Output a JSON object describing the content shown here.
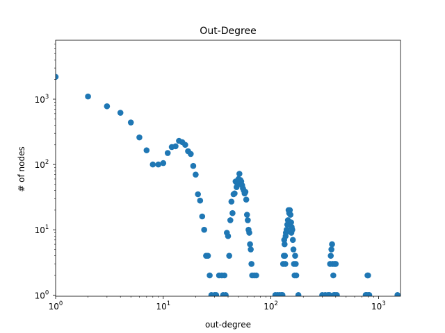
{
  "chart_data": {
    "type": "scatter",
    "title": "Out-Degree",
    "xlabel": "out-degree",
    "ylabel": "# of nodes",
    "xscale": "log",
    "yscale": "log",
    "xlim": [
      1,
      1600
    ],
    "ylim": [
      0.96,
      8000
    ],
    "x_ticks": [
      {
        "value": 1,
        "base": "10",
        "exp": "0"
      },
      {
        "value": 10,
        "base": "10",
        "exp": "1"
      },
      {
        "value": 100,
        "base": "10",
        "exp": "2"
      },
      {
        "value": 1000,
        "base": "10",
        "exp": "3"
      }
    ],
    "y_ticks": [
      {
        "value": 1,
        "base": "10",
        "exp": "0"
      },
      {
        "value": 10,
        "base": "10",
        "exp": "1"
      },
      {
        "value": 100,
        "base": "10",
        "exp": "2"
      },
      {
        "value": 1000,
        "base": "10",
        "exp": "3"
      }
    ],
    "grid": false,
    "legend": "none",
    "marker_color": "#1f77b4",
    "series": [
      {
        "points": [
          [
            1,
            2200
          ],
          [
            2,
            1100
          ],
          [
            3,
            780
          ],
          [
            4,
            620
          ],
          [
            5,
            440
          ],
          [
            6,
            260
          ],
          [
            7,
            165
          ],
          [
            8,
            100
          ],
          [
            9,
            100
          ],
          [
            10,
            105
          ],
          [
            11,
            150
          ],
          [
            12,
            185
          ],
          [
            13,
            190
          ],
          [
            14,
            230
          ],
          [
            15,
            220
          ],
          [
            16,
            200
          ],
          [
            17,
            160
          ],
          [
            18,
            145
          ],
          [
            19,
            95
          ],
          [
            20,
            70
          ],
          [
            21,
            35
          ],
          [
            22,
            28
          ],
          [
            23,
            16
          ],
          [
            24,
            10
          ],
          [
            25,
            4
          ],
          [
            26,
            4
          ],
          [
            27,
            2
          ],
          [
            28,
            1
          ],
          [
            30,
            1
          ],
          [
            31,
            1
          ],
          [
            33,
            2
          ],
          [
            35,
            2
          ],
          [
            36,
            1
          ],
          [
            37,
            2
          ],
          [
            38,
            1
          ],
          [
            39,
            9
          ],
          [
            40,
            8
          ],
          [
            41,
            4
          ],
          [
            42,
            14
          ],
          [
            43,
            27
          ],
          [
            44,
            18
          ],
          [
            45,
            35
          ],
          [
            46,
            36
          ],
          [
            47,
            55
          ],
          [
            48,
            45
          ],
          [
            49,
            50
          ],
          [
            50,
            60
          ],
          [
            51,
            72
          ],
          [
            52,
            58
          ],
          [
            53,
            55
          ],
          [
            54,
            48
          ],
          [
            55,
            43
          ],
          [
            56,
            40
          ],
          [
            57,
            36
          ],
          [
            58,
            38
          ],
          [
            59,
            29
          ],
          [
            60,
            17
          ],
          [
            61,
            14
          ],
          [
            62,
            10
          ],
          [
            63,
            9
          ],
          [
            64,
            6
          ],
          [
            65,
            5
          ],
          [
            66,
            3
          ],
          [
            67,
            2
          ],
          [
            70,
            2
          ],
          [
            73,
            2
          ],
          [
            110,
            1
          ],
          [
            115,
            1
          ],
          [
            120,
            1
          ],
          [
            125,
            1
          ],
          [
            128,
            1
          ],
          [
            130,
            3
          ],
          [
            132,
            4
          ],
          [
            133,
            7
          ],
          [
            134,
            6
          ],
          [
            135,
            4
          ],
          [
            136,
            3
          ],
          [
            137,
            8
          ],
          [
            138,
            9
          ],
          [
            140,
            10
          ],
          [
            142,
            12
          ],
          [
            144,
            14
          ],
          [
            146,
            20
          ],
          [
            148,
            18
          ],
          [
            150,
            20
          ],
          [
            152,
            17
          ],
          [
            154,
            13
          ],
          [
            155,
            9
          ],
          [
            156,
            11
          ],
          [
            158,
            10
          ],
          [
            160,
            7
          ],
          [
            162,
            5
          ],
          [
            164,
            3
          ],
          [
            166,
            2
          ],
          [
            168,
            4
          ],
          [
            170,
            3
          ],
          [
            172,
            2
          ],
          [
            180,
            1
          ],
          [
            300,
            1
          ],
          [
            320,
            1
          ],
          [
            340,
            1
          ],
          [
            350,
            1
          ],
          [
            355,
            3
          ],
          [
            360,
            4
          ],
          [
            365,
            5
          ],
          [
            370,
            6
          ],
          [
            375,
            3
          ],
          [
            380,
            2
          ],
          [
            385,
            1
          ],
          [
            390,
            3
          ],
          [
            395,
            1
          ],
          [
            400,
            3
          ],
          [
            410,
            1
          ],
          [
            760,
            1
          ],
          [
            780,
            1
          ],
          [
            790,
            2
          ],
          [
            800,
            2
          ],
          [
            810,
            1
          ],
          [
            820,
            1
          ],
          [
            1500,
            1
          ]
        ]
      }
    ]
  }
}
